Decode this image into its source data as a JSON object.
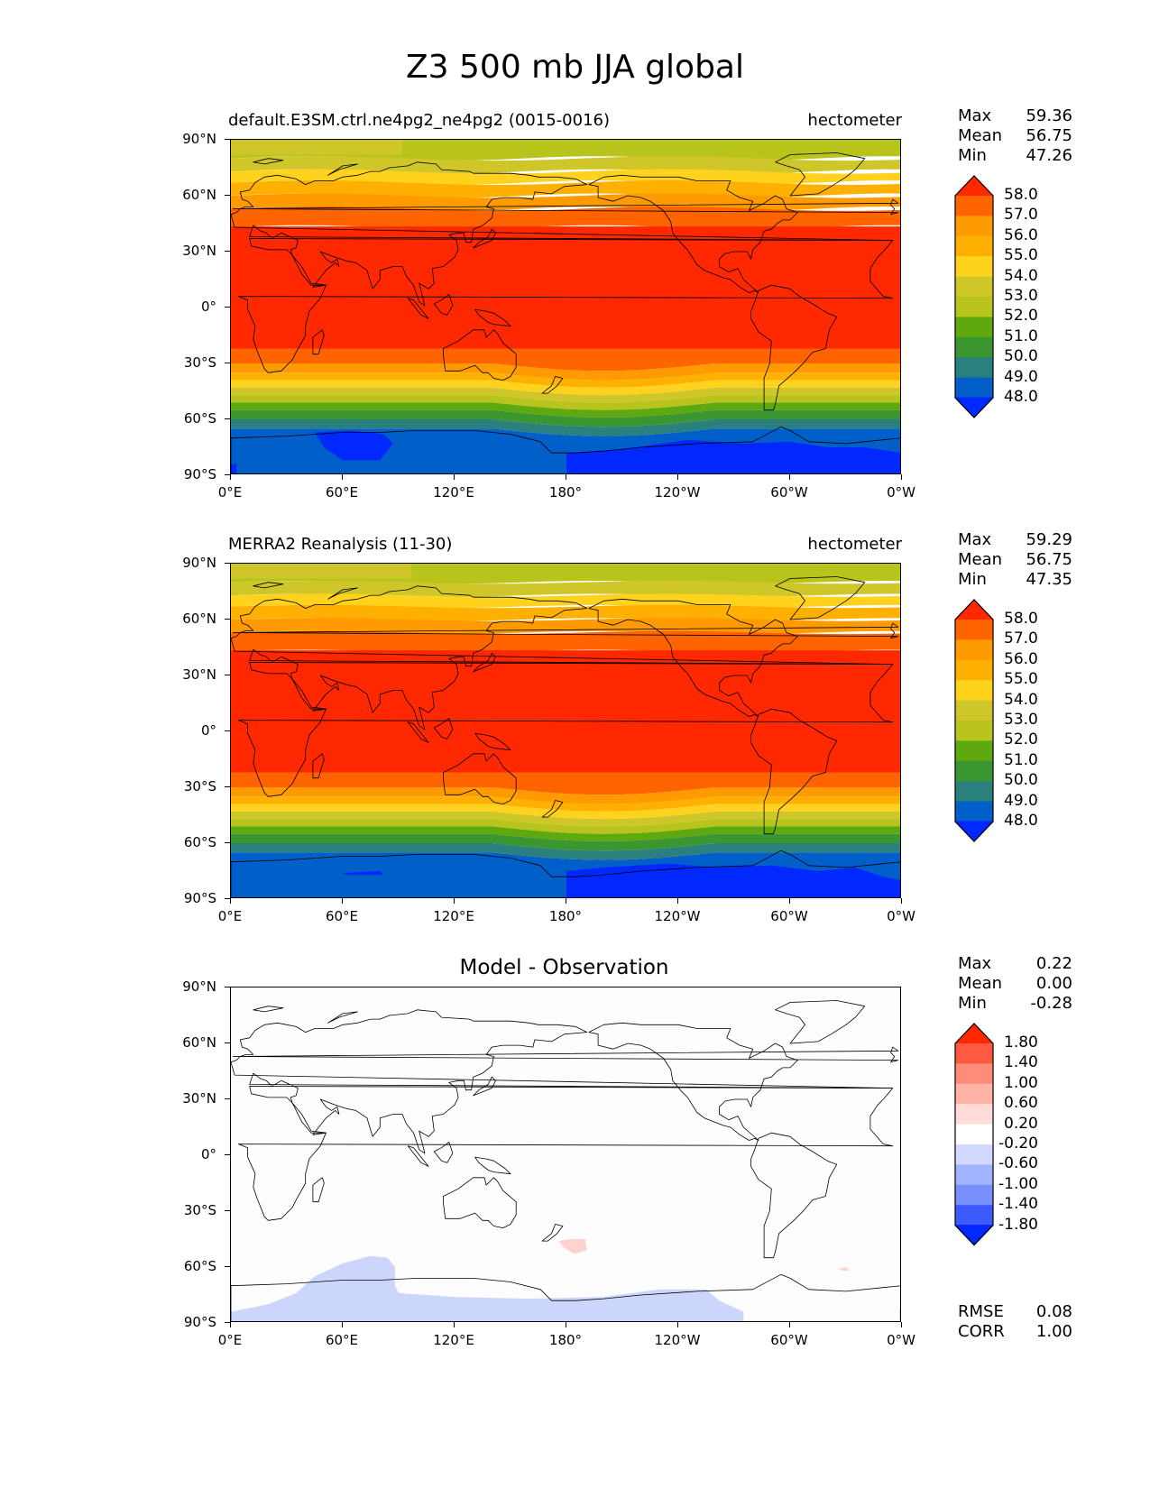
{
  "title": "Z3 500 mb JJA global",
  "lat_labels": [
    "90°N",
    "60°N",
    "30°N",
    "0°",
    "30°S",
    "60°S",
    "90°S"
  ],
  "lon_labels": [
    "0°E",
    "60°E",
    "120°E",
    "180°",
    "120°W",
    "60°W",
    "0°W"
  ],
  "stat_names": {
    "max": "Max",
    "mean": "Mean",
    "min": "Min",
    "rmse": "RMSE",
    "corr": "CORR"
  },
  "panels": [
    {
      "id": "test",
      "left_title": "default.E3SM.ctrl.ne4pg2_ne4pg2 (0015-0016)",
      "right_title": "hectometer",
      "stats": {
        "max": "59.36",
        "mean": "56.75",
        "min": "47.26"
      },
      "colorbar": {
        "labels": [
          "58.0",
          "57.0",
          "56.0",
          "55.0",
          "54.0",
          "53.0",
          "52.0",
          "51.0",
          "50.0",
          "49.0",
          "48.0"
        ],
        "colors": [
          "#ff2800",
          "#ff6400",
          "#ff9a00",
          "#ffb000",
          "#ffd21e",
          "#cfc62a",
          "#b8c41c",
          "#5ea810",
          "#3c9630",
          "#2a807c",
          "#005fc8",
          "#0028ff"
        ]
      }
    },
    {
      "id": "reference",
      "left_title": "MERRA2 Reanalysis (11-30)",
      "right_title": "hectometer",
      "stats": {
        "max": "59.29",
        "mean": "56.75",
        "min": "47.35"
      },
      "colorbar": {
        "labels": [
          "58.0",
          "57.0",
          "56.0",
          "55.0",
          "54.0",
          "53.0",
          "52.0",
          "51.0",
          "50.0",
          "49.0",
          "48.0"
        ],
        "colors": [
          "#ff2800",
          "#ff6400",
          "#ff9a00",
          "#ffb000",
          "#ffd21e",
          "#cfc62a",
          "#b8c41c",
          "#5ea810",
          "#3c9630",
          "#2a807c",
          "#005fc8",
          "#0028ff"
        ]
      }
    },
    {
      "id": "difference",
      "center_title": "Model - Observation",
      "stats": {
        "max": "0.22",
        "mean": "0.00",
        "min": "-0.28",
        "rmse": "0.08",
        "corr": "1.00"
      },
      "colorbar": {
        "labels": [
          "1.80",
          "1.40",
          "1.00",
          "0.60",
          "0.20",
          "-0.20",
          "-0.60",
          "-1.00",
          "-1.40",
          "-1.80"
        ],
        "colors": [
          "#ff2800",
          "#ff5a41",
          "#ff8c78",
          "#ffb4a5",
          "#ffdcd7",
          "#ffffff",
          "#d2daff",
          "#a0b4ff",
          "#7891ff",
          "#3c5aff",
          "#0028ff"
        ]
      }
    }
  ]
}
